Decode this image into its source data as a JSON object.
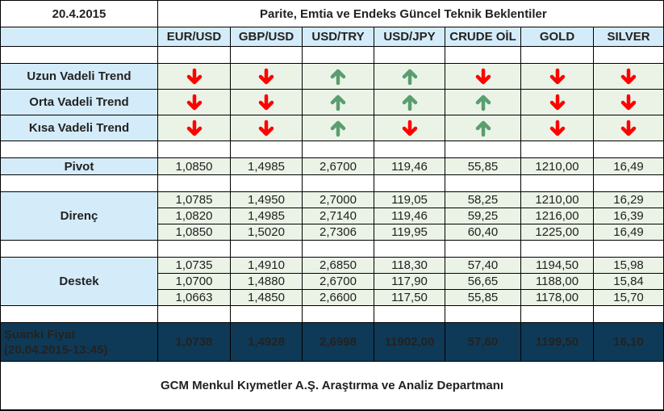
{
  "header": {
    "date": "20.4.2015",
    "title": "Parite, Emtia ve Endeks Güncel Teknik Beklentiler"
  },
  "columns": [
    "EUR/USD",
    "GBP/USD",
    "USD/TRY",
    "USD/JPY",
    "CRUDE OİL",
    "GOLD",
    "SILVER"
  ],
  "colors": {
    "up": "#5a9e6f",
    "down": "#ff0000",
    "label_bg": "#d4ecf9",
    "value_bg": "#ebf3e7",
    "current_bg": "#0e3a57"
  },
  "trends": [
    {
      "label": "Uzun Vadeli Trend",
      "directions": [
        "down",
        "down",
        "up",
        "up",
        "down",
        "down",
        "down"
      ]
    },
    {
      "label": "Orta Vadeli Trend",
      "directions": [
        "down",
        "down",
        "up",
        "up",
        "up",
        "down",
        "down"
      ]
    },
    {
      "label": "Kısa Vadeli Trend",
      "directions": [
        "down",
        "down",
        "up",
        "down",
        "up",
        "down",
        "down"
      ]
    }
  ],
  "pivot": {
    "label": "Pivot",
    "values": [
      "1,0850",
      "1,4985",
      "2,6700",
      "119,46",
      "55,85",
      "1210,00",
      "16,49"
    ]
  },
  "resistance": {
    "label": "Direnç",
    "rows": [
      [
        "1,0785",
        "1,4950",
        "2,7000",
        "119,05",
        "58,25",
        "1210,00",
        "16,29"
      ],
      [
        "1,0820",
        "1,4985",
        "2,7140",
        "119,46",
        "59,25",
        "1216,00",
        "16,39"
      ],
      [
        "1,0850",
        "1,5020",
        "2,7306",
        "119,95",
        "60,40",
        "1225,00",
        "16,49"
      ]
    ]
  },
  "support": {
    "label": "Destek",
    "rows": [
      [
        "1,0735",
        "1,4910",
        "2,6850",
        "118,30",
        "57,40",
        "1194,50",
        "15,98"
      ],
      [
        "1,0700",
        "1,4880",
        "2,6700",
        "117,90",
        "56,65",
        "1188,00",
        "15,84"
      ],
      [
        "1,0663",
        "1,4850",
        "2,6600",
        "117,50",
        "55,85",
        "1178,00",
        "15,70"
      ]
    ]
  },
  "current": {
    "label_line1": "Şuanki Fiyat",
    "label_line2": "(20.04.2015-13:45)",
    "values": [
      "1,0738",
      "1,4928",
      "2,6998",
      "11902,00",
      "57,60",
      "1199,50",
      "16,10"
    ]
  },
  "footer": {
    "text": "GCM Menkul Kıymetler A.Ş. Araştırma ve Analiz Departmanı"
  }
}
